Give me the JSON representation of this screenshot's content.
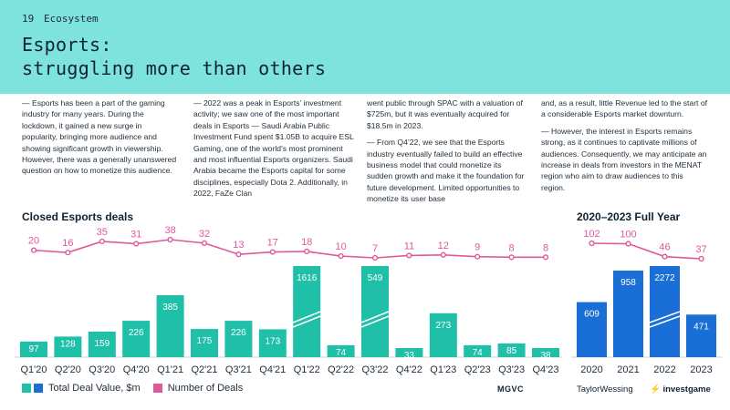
{
  "header": {
    "page_number": "19",
    "section": "Ecosystem",
    "title_line1": "Esports:",
    "title_line2": "struggling more than others"
  },
  "body_text": {
    "col1": "— Esports has been a part of the gaming industry for many years. During the lockdown, it gained a new surge in popularity, bringing more audience and showing significant growth in viewership. However, there was a generally unanswered question on how to monetize this audience.",
    "col2": "— 2022 was a peak in Esports’ investment activity; we saw one of the most important deals in Esports — Saudi Arabia Public Investment Fund spent $1.05B to acquire ESL Gaming, one of the world’s most prominent and most influential Esports organizers. Saudi Arabia became the Esports capital for some disciplines, especially Dota 2. Additionally, in 2022, FaZe Clan",
    "col3_p1": "went public through SPAC with a valuation of $725m, but it was eventually acquired for $18.5m in 2023.",
    "col3_p2": "— From Q4’22, we see that the Esports industry eventually failed to build an effective business model that could monetize its sudden growth and make it the foundation for future development. Limited opportunities to monetize its user base",
    "col4_p1": "and, as a result, little Revenue led to the start of a considerable Esports market downturn.",
    "col4_p2": "— However, the interest in Esports remains strong, as it continues to captivate millions of audiences. Consequently, we may anticipate an increase in deals from investors in the MENAT region who aim to draw audiences to this region."
  },
  "legend": {
    "deal_value": "Total Deal Value, $m",
    "deal_count": "Number of Deals"
  },
  "colors": {
    "header_bg": "#7ee3dc",
    "bar_teal": "#1fbfa8",
    "bar_blue": "#1a6fd6",
    "line_pink": "#e0589a",
    "text_dark": "#0e2233"
  },
  "logos": {
    "mgvc": "MGVC",
    "taylor_wessing": "TaylorWessing",
    "investgame": "investgame"
  },
  "chart_data": [
    {
      "type": "bar",
      "title": "Closed Esports deals",
      "categories": [
        "Q1'20",
        "Q2'20",
        "Q3'20",
        "Q4'20",
        "Q1'21",
        "Q2'21",
        "Q3'21",
        "Q4'21",
        "Q1'22",
        "Q2'22",
        "Q3'22",
        "Q4'22",
        "Q1'23",
        "Q2'23",
        "Q3'23",
        "Q4'23"
      ],
      "series": [
        {
          "name": "Total Deal Value, $m",
          "kind": "bar",
          "values": [
            97,
            128,
            159,
            226,
            385,
            175,
            226,
            173,
            1616,
            74,
            549,
            33,
            273,
            74,
            85,
            38
          ]
        },
        {
          "name": "Number of Deals",
          "kind": "line",
          "values": [
            20,
            16,
            35,
            31,
            38,
            32,
            13,
            17,
            18,
            10,
            7,
            11,
            12,
            9,
            8,
            8
          ]
        }
      ],
      "bar_breaks": [
        8,
        10
      ],
      "xlabel": "",
      "ylabel": ""
    },
    {
      "type": "bar",
      "title": "2020–2023 Full Year",
      "categories": [
        "2020",
        "2021",
        "2022",
        "2023"
      ],
      "series": [
        {
          "name": "Total Deal Value, $m",
          "kind": "bar",
          "values": [
            609,
            958,
            2272,
            471
          ]
        },
        {
          "name": "Number of Deals",
          "kind": "line",
          "values": [
            102,
            100,
            46,
            37
          ]
        }
      ],
      "bar_breaks": [
        2
      ],
      "xlabel": "",
      "ylabel": ""
    }
  ]
}
